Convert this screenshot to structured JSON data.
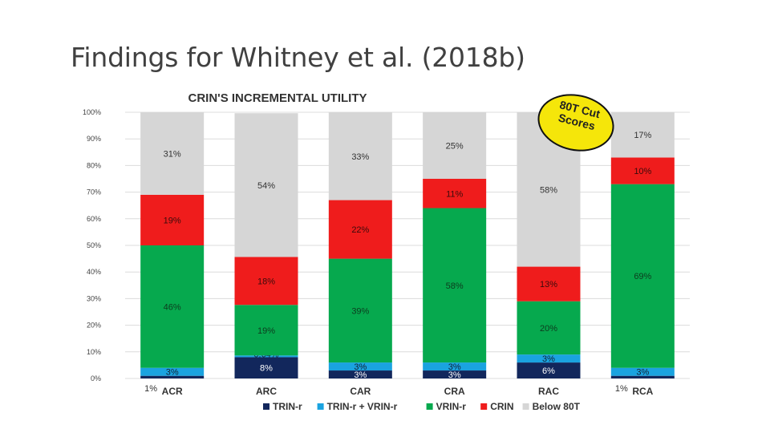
{
  "slide": {
    "title": "Findings for Whitney et al. (2018b)"
  },
  "badge": {
    "line1": "80T Cut",
    "line2": "Scores"
  },
  "colors": {
    "trin": "#12275c",
    "trin_vrin": "#1aa3e0",
    "vrin": "#06a94e",
    "crin": "#ef1c1c",
    "below": "#d6d6d6"
  },
  "chart_data": {
    "type": "bar",
    "stacked": true,
    "title": "CRIN'S INCREMENTAL UTILITY",
    "xlabel": "",
    "ylabel": "",
    "ylim": [
      0,
      100
    ],
    "yticks": [
      "0%",
      "10%",
      "20%",
      "30%",
      "40%",
      "50%",
      "60%",
      "70%",
      "80%",
      "90%",
      "100%"
    ],
    "categories": [
      "ACR",
      "ARC",
      "CAR",
      "CRA",
      "RAC",
      "RCA"
    ],
    "legend_position": "bottom",
    "series": [
      {
        "name": "TRIN-r",
        "color_key": "trin",
        "values": [
          1,
          8,
          3,
          3,
          6,
          1
        ],
        "labels": [
          "1%",
          "8%",
          "3%",
          "3%",
          "6%",
          "1%"
        ]
      },
      {
        "name": "TRIN-r + VRIN-r",
        "color_key": "trin_vrin",
        "values": [
          3,
          0.64,
          3,
          3,
          3,
          3
        ],
        "labels": [
          "3%",
          "0.64%",
          "3%",
          "3%",
          "3%",
          "3%"
        ]
      },
      {
        "name": "VRIN-r",
        "color_key": "vrin",
        "values": [
          46,
          19,
          39,
          58,
          20,
          69
        ],
        "labels": [
          "46%",
          "19%",
          "39%",
          "58%",
          "20%",
          "69%"
        ]
      },
      {
        "name": "CRIN",
        "color_key": "crin",
        "values": [
          19,
          18,
          22,
          11,
          13,
          10
        ],
        "labels": [
          "19%",
          "18%",
          "22%",
          "11%",
          "13%",
          "10%"
        ]
      },
      {
        "name": "Below 80T",
        "color_key": "below",
        "values": [
          31,
          54,
          33,
          25,
          58,
          17
        ],
        "labels": [
          "31%",
          "54%",
          "33%",
          "25%",
          "58%",
          "17%"
        ]
      }
    ]
  }
}
